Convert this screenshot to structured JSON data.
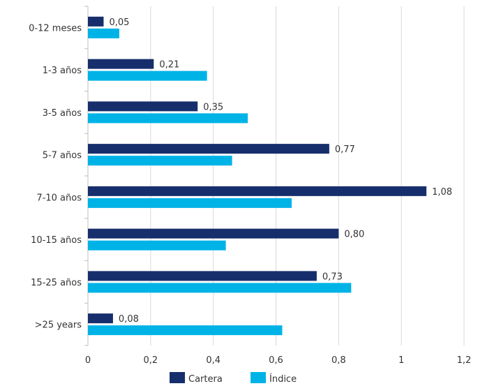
{
  "chart_data": {
    "type": "bar",
    "orientation": "horizontal",
    "categories": [
      "0-12 meses",
      "1-3 años",
      "3-5 años",
      "5-7 años",
      "7-10 años",
      "10-15 años",
      "15-25 años",
      ">25 years"
    ],
    "series": [
      {
        "name": "Cartera",
        "color": "#162e6b",
        "values": [
          0.05,
          0.21,
          0.35,
          0.77,
          1.08,
          0.8,
          0.73,
          0.08
        ],
        "labels": [
          "0,05",
          "0,21",
          "0,35",
          "0,77",
          "1,08",
          "0,80",
          "0,73",
          "0,08"
        ]
      },
      {
        "name": "Índice",
        "color": "#00b3e6",
        "values": [
          0.1,
          0.38,
          0.51,
          0.46,
          0.65,
          0.44,
          0.84,
          0.62
        ]
      }
    ],
    "xlim": [
      0,
      1.2
    ],
    "xticks": [
      0,
      0.2,
      0.4,
      0.6,
      0.8,
      1,
      1.2
    ],
    "xtick_labels": [
      "0",
      "0,2",
      "0,4",
      "0,6",
      "0,8",
      "1",
      "1,2"
    ],
    "xlabel": "",
    "ylabel": "",
    "title": "",
    "grid": "vertical",
    "legend_position": "bottom"
  }
}
